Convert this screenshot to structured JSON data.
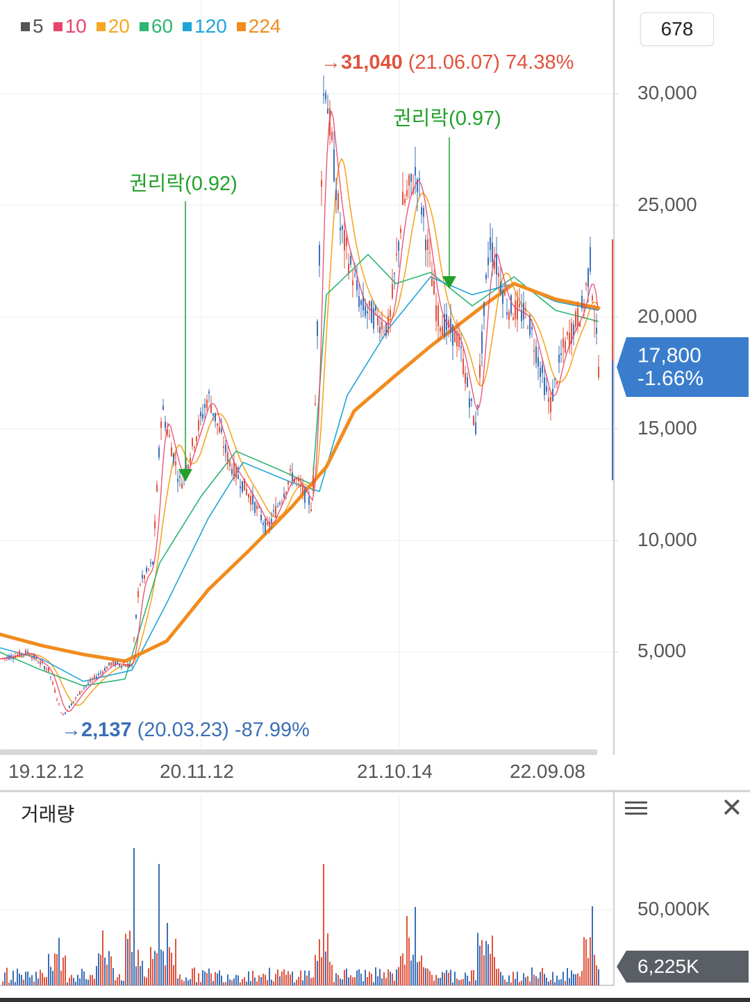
{
  "legend": [
    {
      "label": "5",
      "color": "#555555"
    },
    {
      "label": "10",
      "color": "#e8436a"
    },
    {
      "label": "20",
      "color": "#f5a623"
    },
    {
      "label": "60",
      "color": "#2bb673"
    },
    {
      "label": "120",
      "color": "#1ea5d8"
    },
    {
      "label": "224",
      "color": "#f08c1e"
    }
  ],
  "count_badge": "678",
  "y_axis_labels": [
    "30,000",
    "25,000",
    "20,000",
    "15,000",
    "10,000",
    "5,000"
  ],
  "x_axis_labels": [
    "19.12.12",
    "20.11.12",
    "21.10.14",
    "22.09.08"
  ],
  "current_price": {
    "value": "17,800",
    "change": "-1.66%"
  },
  "high_annotation": {
    "arrow": "→",
    "value": "31,040",
    "date": "(21.06.07)",
    "pct": "74.38%"
  },
  "low_annotation": {
    "arrow": "→",
    "value": "2,137",
    "date": "(20.03.23)",
    "pct": "-87.99%"
  },
  "ex_rights": [
    {
      "label": "권리락(0.92)"
    },
    {
      "label": "권리락(0.97)"
    }
  ],
  "volume_panel": {
    "title": "거래량",
    "y_label": "50,000K",
    "current": "6,225K"
  },
  "colors": {
    "up": "#e0533d",
    "down": "#3b6fb6",
    "price_tag": "#3a7dcc",
    "ma224": "#f08c1e",
    "ex_rights": "#22a02a"
  },
  "chart_data": {
    "type": "line",
    "title": "",
    "y_ticks": [
      5000,
      10000,
      15000,
      20000,
      25000,
      30000
    ],
    "ylim": [
      1500,
      31500
    ],
    "x_ticks": [
      "19.12.12",
      "20.11.12",
      "21.10.14",
      "22.09.08"
    ],
    "series": [
      {
        "name": "224",
        "points": [
          [
            0,
            5800
          ],
          [
            60,
            5300
          ],
          [
            120,
            4900
          ],
          [
            180,
            4600
          ],
          [
            240,
            5500
          ],
          [
            300,
            7800
          ],
          [
            360,
            9600
          ],
          [
            420,
            11500
          ],
          [
            470,
            13300
          ],
          [
            510,
            15800
          ],
          [
            570,
            17400
          ],
          [
            620,
            18700
          ],
          [
            700,
            20600
          ],
          [
            740,
            21500
          ],
          [
            800,
            20800
          ],
          [
            862,
            20400
          ]
        ]
      },
      {
        "name": "60",
        "points": [
          [
            0,
            5000
          ],
          [
            60,
            4200
          ],
          [
            120,
            3500
          ],
          [
            180,
            3800
          ],
          [
            230,
            9000
          ],
          [
            290,
            12000
          ],
          [
            340,
            14000
          ],
          [
            400,
            13200
          ],
          [
            450,
            12500
          ],
          [
            470,
            21000
          ],
          [
            530,
            22800
          ],
          [
            570,
            21500
          ],
          [
            620,
            22000
          ],
          [
            680,
            20500
          ],
          [
            740,
            21800
          ],
          [
            800,
            20300
          ],
          [
            862,
            19800
          ]
        ]
      },
      {
        "name": "120",
        "points": [
          [
            0,
            5200
          ],
          [
            60,
            4700
          ],
          [
            120,
            3700
          ],
          [
            190,
            4200
          ],
          [
            240,
            7200
          ],
          [
            300,
            11000
          ],
          [
            350,
            13500
          ],
          [
            420,
            12600
          ],
          [
            460,
            12200
          ],
          [
            500,
            16500
          ],
          [
            560,
            19500
          ],
          [
            620,
            21800
          ],
          [
            680,
            21000
          ],
          [
            740,
            21500
          ],
          [
            800,
            20700
          ],
          [
            862,
            20300
          ]
        ]
      },
      {
        "name": "close",
        "points": [
          [
            0,
            4700
          ],
          [
            40,
            5000
          ],
          [
            70,
            4200
          ],
          [
            90,
            2137
          ],
          [
            120,
            3400
          ],
          [
            160,
            4500
          ],
          [
            190,
            4400
          ],
          [
            200,
            8000
          ],
          [
            220,
            9000
          ],
          [
            233,
            16000
          ],
          [
            260,
            12500
          ],
          [
            300,
            16500
          ],
          [
            330,
            13500
          ],
          [
            360,
            12000
          ],
          [
            385,
            10500
          ],
          [
            420,
            13000
          ],
          [
            450,
            11500
          ],
          [
            467,
            31040
          ],
          [
            490,
            24000
          ],
          [
            520,
            20500
          ],
          [
            560,
            19500
          ],
          [
            580,
            25000
          ],
          [
            600,
            26500
          ],
          [
            630,
            20000
          ],
          [
            660,
            19000
          ],
          [
            685,
            15000
          ],
          [
            705,
            23500
          ],
          [
            730,
            20500
          ],
          [
            760,
            20000
          ],
          [
            792,
            16000
          ],
          [
            810,
            18500
          ],
          [
            840,
            20500
          ],
          [
            850,
            22500
          ],
          [
            862,
            17800
          ]
        ]
      }
    ],
    "annotations": [
      {
        "type": "high",
        "value": 31040,
        "date": "21.06.07",
        "pct": "74.38%"
      },
      {
        "type": "low",
        "value": 2137,
        "date": "20.03.23",
        "pct": "-87.99%"
      },
      {
        "type": "ex-rights",
        "label": "권리락(0.92)"
      },
      {
        "type": "ex-rights",
        "label": "권리락(0.97)"
      }
    ],
    "current": {
      "value": 17800,
      "change": "-1.66%"
    },
    "volume": {
      "y_ticks": [
        "50,000K"
      ],
      "current": "6,225K"
    },
    "grid": true
  }
}
